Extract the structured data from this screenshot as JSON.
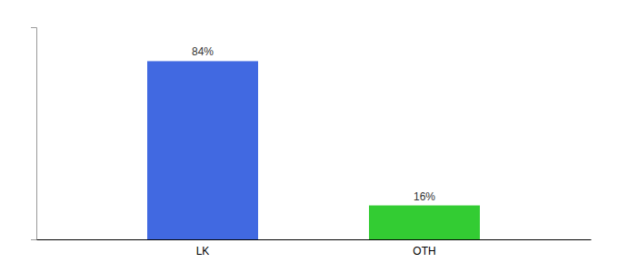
{
  "chart_data": {
    "type": "bar",
    "categories": [
      "LK",
      "OTH"
    ],
    "values": [
      84,
      16
    ],
    "value_labels": [
      "84%",
      "16%"
    ],
    "colors": [
      "#4169e1",
      "#33cc33"
    ],
    "ylim": [
      0,
      100
    ],
    "data_labels": true,
    "tick_labels": "x"
  }
}
